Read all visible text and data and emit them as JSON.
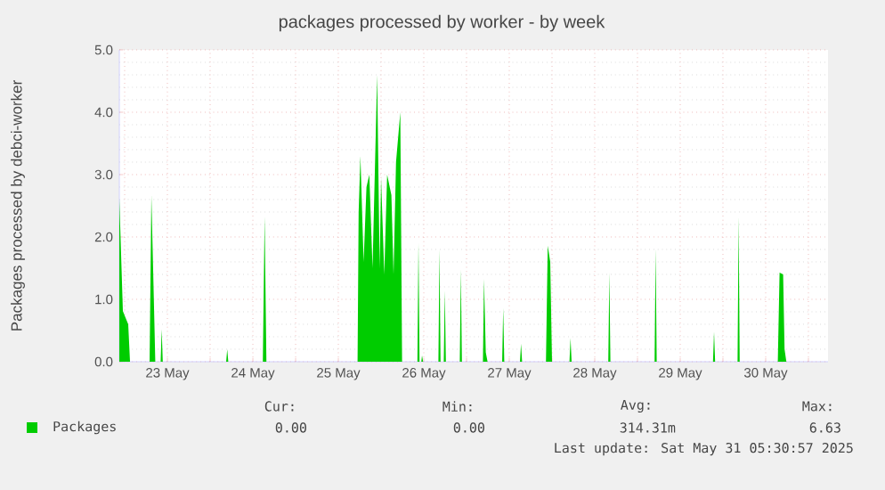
{
  "chart_data": {
    "type": "area",
    "title": "packages processed by worker - by week",
    "ylabel": "Packages processed by debci-worker",
    "x": [
      "2025-05-22T22:30",
      "2025-05-22T23:30",
      "2025-05-23T01:00",
      "2025-05-23T01:30",
      "2025-05-23T07:00",
      "2025-05-23T07:30",
      "2025-05-23T08:24",
      "2025-05-23T08:36",
      "2025-05-23T10:06",
      "2025-05-23T10:24",
      "2025-05-23T10:42",
      "2025-05-24T04:30",
      "2025-05-24T04:48",
      "2025-05-24T05:06",
      "2025-05-24T14:48",
      "2025-05-24T15:18",
      "2025-05-24T15:48",
      "2025-05-25T17:24",
      "2025-05-25T17:42",
      "2025-05-25T18:12",
      "2025-05-25T19:06",
      "2025-05-25T19:54",
      "2025-05-25T20:42",
      "2025-05-25T21:36",
      "2025-05-25T22:54",
      "2025-05-25T23:36",
      "2025-05-26T00:00",
      "2025-05-26T00:54",
      "2025-05-26T01:42",
      "2025-05-26T02:54",
      "2025-05-26T03:30",
      "2025-05-26T04:12",
      "2025-05-26T05:24",
      "2025-05-26T05:54",
      "2025-05-26T10:12",
      "2025-05-26T10:30",
      "2025-05-26T10:48",
      "2025-05-26T11:18",
      "2025-05-26T11:30",
      "2025-05-26T11:48",
      "2025-05-26T16:06",
      "2025-05-26T16:24",
      "2025-05-26T16:42",
      "2025-05-26T17:36",
      "2025-05-26T17:54",
      "2025-05-26T18:12",
      "2025-05-26T22:06",
      "2025-05-26T22:24",
      "2025-05-26T22:42",
      "2025-05-27T04:36",
      "2025-05-27T04:54",
      "2025-05-27T05:24",
      "2025-05-27T05:54",
      "2025-05-27T10:00",
      "2025-05-27T10:18",
      "2025-05-27T10:36",
      "2025-05-27T15:00",
      "2025-05-27T15:18",
      "2025-05-27T15:36",
      "2025-05-27T22:18",
      "2025-05-27T22:48",
      "2025-05-27T23:30",
      "2025-05-28T00:00",
      "2025-05-28T04:54",
      "2025-05-28T05:12",
      "2025-05-28T05:30",
      "2025-05-28T15:48",
      "2025-05-28T16:06",
      "2025-05-28T16:24",
      "2025-05-29T04:48",
      "2025-05-29T05:06",
      "2025-05-29T05:24",
      "2025-05-29T21:12",
      "2025-05-29T21:30",
      "2025-05-29T21:48",
      "2025-05-30T04:06",
      "2025-05-30T04:24",
      "2025-05-30T04:42",
      "2025-05-30T15:24",
      "2025-05-30T15:54",
      "2025-05-30T16:54",
      "2025-05-30T17:18",
      "2025-05-30T17:48",
      "2025-05-31T05:30"
    ],
    "series": [
      {
        "name": "Packages",
        "color": "#00cc00",
        "values": [
          2.62,
          0.81,
          0.6,
          0,
          0,
          2.67,
          0.5,
          0,
          0,
          0.52,
          0,
          0,
          0.2,
          0,
          0,
          2.33,
          0,
          0,
          2.4,
          3.3,
          1.6,
          2.8,
          3.0,
          1.5,
          4.6,
          1.5,
          2.95,
          1.4,
          3.0,
          2.67,
          1.4,
          3.2,
          4.0,
          0,
          0,
          1.9,
          0,
          0,
          0.1,
          0,
          0,
          1.8,
          0,
          0,
          1.14,
          0,
          0,
          1.48,
          0,
          0,
          1.33,
          0.15,
          0,
          0,
          0.86,
          0,
          0,
          0.29,
          0,
          0,
          1.86,
          1.6,
          0,
          0,
          0.38,
          0,
          0,
          1.43,
          0,
          0,
          1.81,
          0,
          0,
          0.48,
          0,
          0,
          2.33,
          0,
          0,
          1.43,
          1.4,
          0.2,
          0,
          0
        ]
      }
    ],
    "xlim": [
      "2025-05-22T22:30",
      "2025-05-31T05:30"
    ],
    "xticks": [
      {
        "value": "2025-05-23T00:00",
        "label": null
      },
      {
        "value": "2025-05-23T12:00",
        "label": "23 May"
      },
      {
        "value": "2025-05-24T00:00",
        "label": null
      },
      {
        "value": "2025-05-24T12:00",
        "label": "24 May"
      },
      {
        "value": "2025-05-25T00:00",
        "label": null
      },
      {
        "value": "2025-05-25T12:00",
        "label": "25 May"
      },
      {
        "value": "2025-05-26T00:00",
        "label": null
      },
      {
        "value": "2025-05-26T12:00",
        "label": "26 May"
      },
      {
        "value": "2025-05-27T00:00",
        "label": null
      },
      {
        "value": "2025-05-27T12:00",
        "label": "27 May"
      },
      {
        "value": "2025-05-28T00:00",
        "label": null
      },
      {
        "value": "2025-05-28T12:00",
        "label": "28 May"
      },
      {
        "value": "2025-05-29T00:00",
        "label": null
      },
      {
        "value": "2025-05-29T12:00",
        "label": "29 May"
      },
      {
        "value": "2025-05-30T00:00",
        "label": null
      },
      {
        "value": "2025-05-30T12:00",
        "label": "30 May"
      },
      {
        "value": "2025-05-31T00:00",
        "label": null
      }
    ],
    "ylim": [
      0,
      5
    ],
    "yticks": [
      {
        "value": 0,
        "label": "0.0"
      },
      {
        "value": 1,
        "label": "1.0"
      },
      {
        "value": 2,
        "label": "2.0"
      },
      {
        "value": 3,
        "label": "3.0"
      },
      {
        "value": 4,
        "label": "4.0"
      },
      {
        "value": 5,
        "label": "5.0"
      }
    ],
    "grid": true,
    "legend": "bottom left",
    "marker": "none",
    "annotations": [
      "Cur:",
      "Min:",
      "Avg:",
      "Max:",
      "0.00",
      "0.00",
      "314.31m",
      "6.63",
      "Last update: Sat May 31 05:30:57 2025"
    ]
  }
}
